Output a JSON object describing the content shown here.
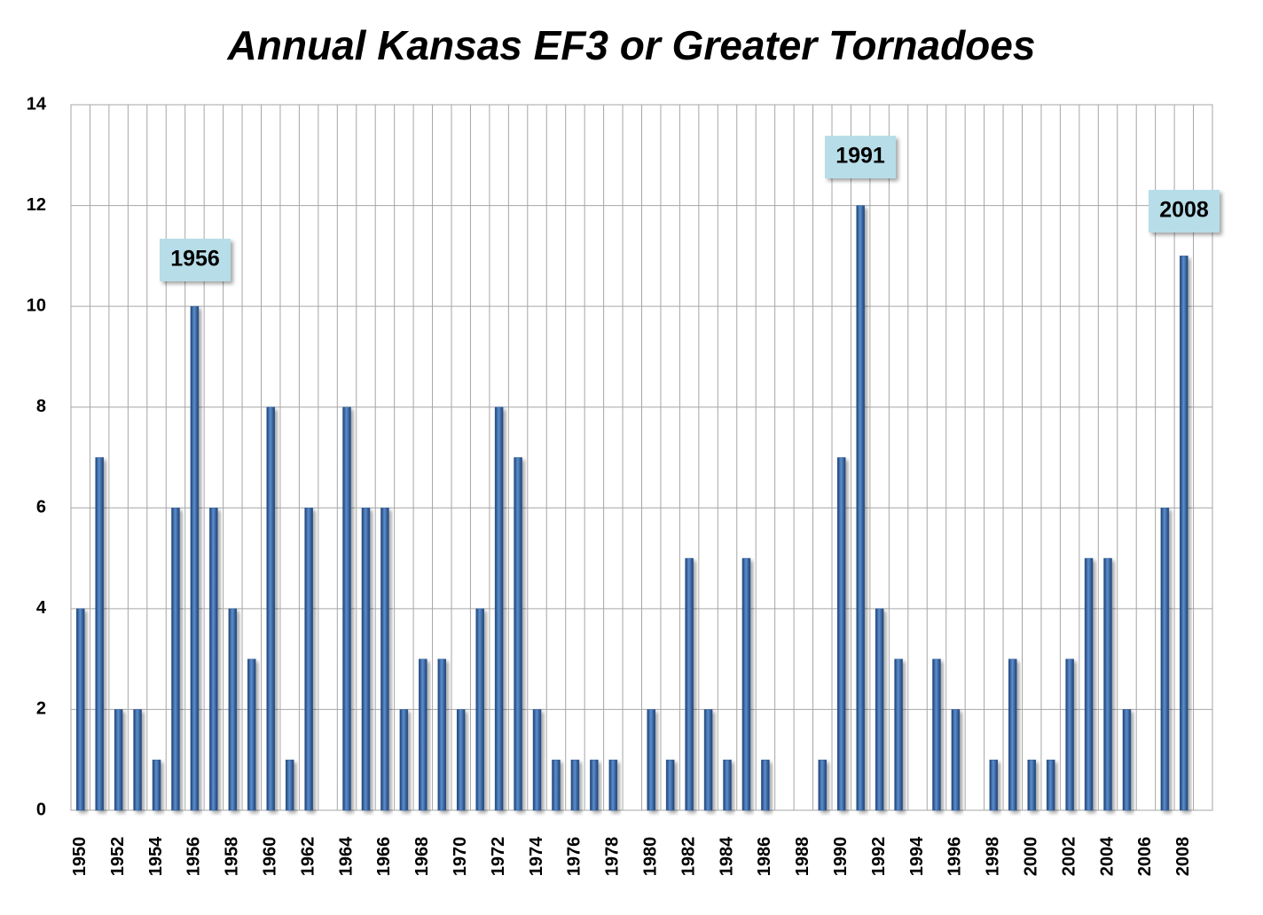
{
  "chart_data": {
    "type": "bar",
    "title": "Annual Kansas EF3 or Greater Tornadoes",
    "categories": [
      "1950",
      null,
      "1952",
      null,
      "1954",
      null,
      "1956",
      null,
      "1958",
      null,
      "1960",
      null,
      "1962",
      null,
      "1964",
      null,
      "1966",
      null,
      "1968",
      null,
      "1970",
      null,
      "1972",
      null,
      "1974",
      null,
      "1976",
      null,
      "1978",
      null,
      "1980",
      null,
      "1982",
      null,
      "1984",
      null,
      "1986",
      null,
      "1988",
      null,
      "1990",
      null,
      "1992",
      null,
      "1994",
      null,
      "1996",
      null,
      "1998",
      null,
      "2000",
      null,
      "2002",
      null,
      "2004",
      null,
      "2006",
      null,
      "2008",
      null
    ],
    "values": [
      4,
      7,
      2,
      2,
      1,
      6,
      10,
      6,
      4,
      3,
      8,
      1,
      6,
      0,
      8,
      6,
      6,
      2,
      3,
      3,
      2,
      4,
      8,
      7,
      2,
      1,
      1,
      1,
      1,
      0,
      2,
      1,
      5,
      2,
      1,
      5,
      1,
      0,
      0,
      1,
      7,
      12,
      4,
      3,
      0,
      3,
      2,
      0,
      1,
      3,
      1,
      1,
      3,
      5,
      5,
      2,
      0,
      6,
      11,
      0
    ],
    "color": "#2e5c9a",
    "ylim": [
      0,
      14
    ],
    "yticks": [
      0,
      2,
      4,
      6,
      8,
      10,
      12,
      14
    ],
    "grid": true,
    "annotations": [
      "1956",
      "1991",
      "2008"
    ]
  }
}
